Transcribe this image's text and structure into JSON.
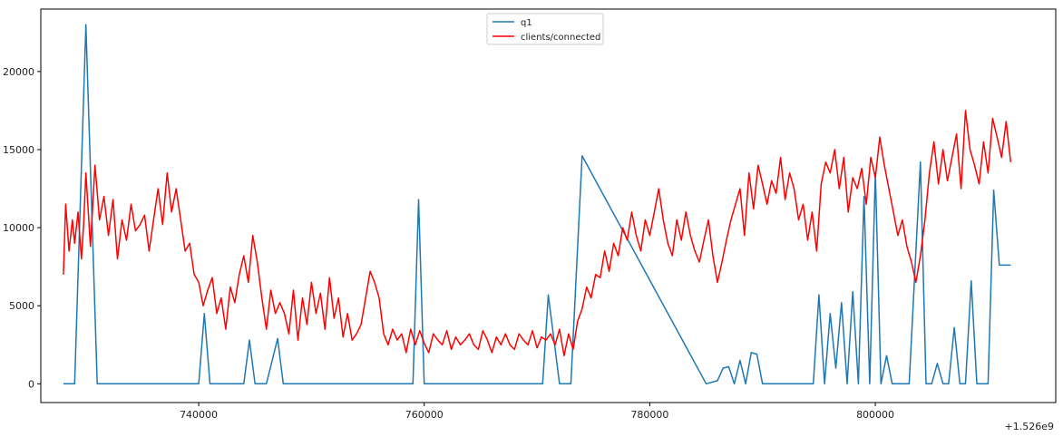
{
  "chart_data": {
    "type": "line",
    "title": "",
    "xlabel": "",
    "ylabel": "",
    "x_offset_label": "+1.526e9",
    "xlim": [
      726000,
      816000
    ],
    "ylim": [
      -1200,
      24000
    ],
    "xticks": [
      740000,
      760000,
      780000,
      800000
    ],
    "yticks": [
      0,
      5000,
      10000,
      15000,
      20000
    ],
    "grid": false,
    "legend_position": "top-center",
    "series": [
      {
        "name": "q1",
        "color": "#1f77b4",
        "x": [
          728000,
          729000,
          730000,
          731000,
          740000,
          740500,
          741000,
          744000,
          744500,
          745000,
          746000,
          747000,
          747500,
          748000,
          759000,
          759500,
          760000,
          770000,
          770500,
          771000,
          772000,
          773000,
          774000,
          785000,
          786000,
          786500,
          787000,
          787500,
          788000,
          788500,
          789000,
          789500,
          790000,
          794500,
          795000,
          795500,
          796000,
          796500,
          797000,
          797500,
          798000,
          798500,
          799000,
          799500,
          800000,
          800500,
          801000,
          801500,
          802000,
          803000,
          804000,
          804500,
          805000,
          805500,
          806000,
          806500,
          807000,
          807500,
          808000,
          808500,
          809000,
          809500,
          810000,
          810500,
          811000,
          811500,
          812000
        ],
        "y": [
          0,
          0,
          23000,
          0,
          0,
          4500,
          0,
          0,
          2800,
          0,
          0,
          2900,
          0,
          0,
          0,
          11800,
          0,
          0,
          0,
          5700,
          0,
          0,
          14600,
          0,
          200,
          1000,
          1100,
          0,
          1500,
          0,
          2000,
          1900,
          0,
          0,
          5700,
          0,
          4500,
          1000,
          5200,
          0,
          5900,
          0,
          12000,
          0,
          13500,
          0,
          1800,
          0,
          0,
          0,
          14200,
          0,
          0,
          1300,
          0,
          0,
          3600,
          0,
          0,
          6600,
          0,
          0,
          0,
          12400,
          7600,
          7600,
          7600
        ]
      },
      {
        "name": "clients/connected",
        "color": "#ff0000",
        "x": [
          728000,
          728200,
          728500,
          728800,
          729000,
          729300,
          729600,
          729800,
          730000,
          730400,
          730800,
          731200,
          731600,
          732000,
          732400,
          732800,
          733200,
          733600,
          734000,
          734400,
          734800,
          735200,
          735600,
          736000,
          736400,
          736800,
          737200,
          737600,
          738000,
          738400,
          738800,
          739200,
          739600,
          740000,
          740400,
          740800,
          741200,
          741600,
          742000,
          742400,
          742800,
          743200,
          743600,
          744000,
          744400,
          744800,
          745200,
          745600,
          746000,
          746400,
          746800,
          747200,
          747600,
          748000,
          748400,
          748800,
          749200,
          749600,
          750000,
          750400,
          750800,
          751200,
          751600,
          752000,
          752400,
          752800,
          753200,
          753600,
          754000,
          754400,
          754800,
          755200,
          755600,
          756000,
          756400,
          756800,
          757200,
          757600,
          758000,
          758400,
          758800,
          759200,
          759600,
          760000,
          760400,
          760800,
          761200,
          761600,
          762000,
          762400,
          762800,
          763200,
          763600,
          764000,
          764400,
          764800,
          765200,
          765600,
          766000,
          766400,
          766800,
          767200,
          767600,
          768000,
          768400,
          768800,
          769200,
          769600,
          770000,
          770400,
          770800,
          771200,
          771600,
          772000,
          772400,
          772800,
          773200,
          773600,
          774000,
          774400,
          774800,
          775200,
          775600,
          776000,
          776400,
          776800,
          777200,
          777600,
          778000,
          778400,
          778800,
          779200,
          779600,
          780000,
          780400,
          780800,
          781200,
          781600,
          782000,
          782400,
          782800,
          783200,
          783600,
          784000,
          784400,
          784800,
          785200,
          785600,
          786000,
          786400,
          786800,
          787200,
          787600,
          788000,
          788400,
          788800,
          789200,
          789600,
          790000,
          790400,
          790800,
          791200,
          791600,
          792000,
          792400,
          792800,
          793200,
          793600,
          794000,
          794400,
          794800,
          795200,
          795600,
          796000,
          796400,
          796800,
          797200,
          797600,
          798000,
          798400,
          798800,
          799200,
          799600,
          800000,
          800400,
          800800,
          801200,
          801600,
          802000,
          802400,
          802800,
          803200,
          803600,
          804000,
          804400,
          804800,
          805200,
          805600,
          806000,
          806400,
          806800,
          807200,
          807600,
          808000,
          808400,
          808800,
          809200,
          809600,
          810000,
          810400,
          810800,
          811200,
          811600,
          812000
        ],
        "y": [
          7000,
          11500,
          8500,
          10500,
          9000,
          11000,
          8000,
          10200,
          13500,
          8800,
          14000,
          10500,
          12000,
          9500,
          11800,
          8000,
          10500,
          9200,
          11500,
          9800,
          10200,
          10800,
          8500,
          10500,
          12500,
          10200,
          13500,
          11000,
          12500,
          10500,
          8500,
          9000,
          7000,
          6500,
          5000,
          6000,
          6800,
          4500,
          5500,
          3500,
          6200,
          5200,
          7000,
          8200,
          6500,
          9500,
          7800,
          5500,
          3500,
          6000,
          4500,
          5200,
          4500,
          3200,
          6000,
          2800,
          5500,
          3800,
          6500,
          4500,
          5800,
          3500,
          6800,
          4200,
          5500,
          3000,
          4500,
          2800,
          3200,
          3800,
          5500,
          7200,
          6500,
          5500,
          3200,
          2500,
          3500,
          2800,
          3200,
          2000,
          3500,
          2500,
          3400,
          2600,
          2000,
          3200,
          2800,
          2500,
          3400,
          2200,
          3000,
          2500,
          2800,
          3200,
          2500,
          2200,
          3400,
          2800,
          2000,
          3000,
          2500,
          3200,
          2500,
          2200,
          3200,
          2800,
          2500,
          3400,
          2300,
          3000,
          2800,
          3200,
          2500,
          3500,
          1800,
          3200,
          2200,
          4000,
          4800,
          6200,
          5500,
          7000,
          6800,
          8500,
          7200,
          9000,
          8200,
          10000,
          9200,
          11000,
          9500,
          8500,
          10500,
          9500,
          11000,
          12500,
          10500,
          9000,
          8200,
          10500,
          9200,
          11000,
          9500,
          8500,
          7800,
          9200,
          10500,
          8200,
          6500,
          7800,
          9200,
          10500,
          11500,
          12500,
          9500,
          13500,
          11200,
          14000,
          12800,
          11500,
          13000,
          12200,
          14500,
          11800,
          13500,
          12500,
          10500,
          11500,
          9200,
          11000,
          8500,
          12800,
          14200,
          13500,
          15000,
          12500,
          14500,
          11000,
          13200,
          12500,
          13800,
          11500,
          14500,
          13200,
          15800,
          14000,
          12500,
          11000,
          9500,
          10500,
          8800,
          7800,
          6500,
          8200,
          10500,
          13500,
          15500,
          12800,
          15000,
          13000,
          14500,
          16000,
          12500,
          17500,
          15000,
          14000,
          12800,
          15500,
          13500,
          17000,
          15800,
          14500,
          16800,
          14200
        ]
      }
    ]
  }
}
